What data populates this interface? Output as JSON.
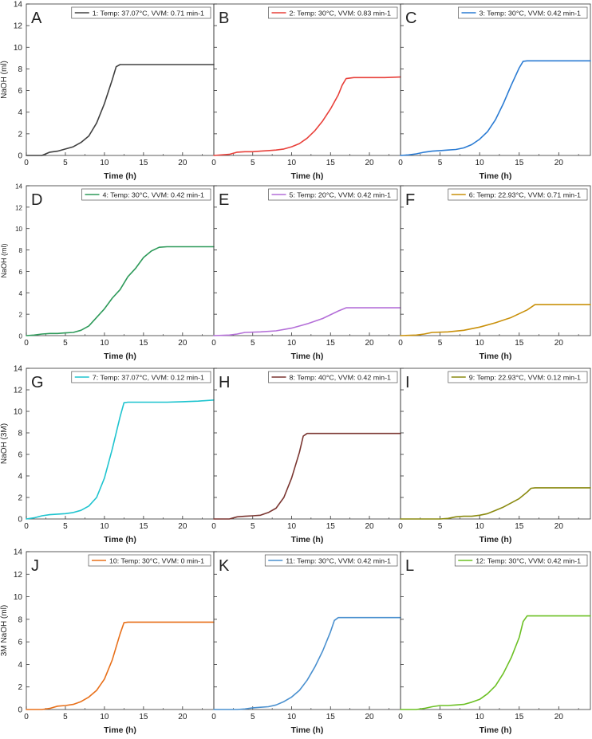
{
  "chart_data": [
    {
      "type": "line",
      "panel": "A",
      "title": "",
      "xlabel": "Time (h)",
      "ylabel": "NaOH (ml)",
      "xlim": [
        0,
        24
      ],
      "ylim": [
        0,
        14
      ],
      "xticks": [
        "0",
        "5",
        "10",
        "15",
        "20"
      ],
      "yticks": [
        "0",
        "2",
        "4",
        "6",
        "8",
        "10",
        "12",
        "14"
      ],
      "legend_position": "top-right",
      "series": [
        {
          "name": "1: Temp: 37.07°C, VVM: 0.71 min-1",
          "color": "#404040",
          "x": [
            0,
            2,
            3,
            4,
            5,
            6,
            7,
            8,
            9,
            10,
            11,
            11.5,
            12,
            14,
            16,
            18,
            20,
            22,
            24
          ],
          "y": [
            0,
            0,
            0.3,
            0.4,
            0.6,
            0.8,
            1.2,
            1.8,
            3,
            4.8,
            7,
            8.2,
            8.4,
            8.4,
            8.4,
            8.4,
            8.4,
            8.4,
            8.4
          ]
        }
      ]
    },
    {
      "type": "line",
      "panel": "B",
      "title": "",
      "xlabel": "Time (h)",
      "ylabel": "",
      "xlim": [
        0,
        24
      ],
      "ylim": [
        0,
        14
      ],
      "xticks": [
        "0",
        "5",
        "10",
        "15",
        "20"
      ],
      "yticks": [],
      "legend_position": "top-right",
      "series": [
        {
          "name": "2: Temp: 30°C, VVM: 0.83 min-1",
          "color": "#e8403a",
          "x": [
            0,
            2,
            3,
            4,
            5,
            6,
            7,
            8,
            9,
            10,
            11,
            12,
            13,
            14,
            15,
            16,
            16.5,
            17,
            18,
            20,
            22,
            24
          ],
          "y": [
            0,
            0.1,
            0.3,
            0.35,
            0.35,
            0.4,
            0.45,
            0.5,
            0.6,
            0.8,
            1.1,
            1.6,
            2.3,
            3.2,
            4.3,
            5.6,
            6.5,
            7.1,
            7.2,
            7.2,
            7.2,
            7.25
          ]
        }
      ]
    },
    {
      "type": "line",
      "panel": "C",
      "title": "",
      "xlabel": "Time (h)",
      "ylabel": "",
      "xlim": [
        0,
        24
      ],
      "ylim": [
        0,
        14
      ],
      "xticks": [
        "0",
        "5",
        "10",
        "15",
        "20"
      ],
      "yticks": [],
      "legend_position": "top-right",
      "series": [
        {
          "name": "3: Temp: 30°C, VVM: 0.42 min-1",
          "color": "#2a7bd3",
          "x": [
            0,
            1,
            2,
            3,
            4,
            5,
            6,
            7,
            8,
            9,
            10,
            11,
            12,
            13,
            14,
            15,
            15.5,
            16,
            18,
            20,
            22,
            24
          ],
          "y": [
            0,
            0.05,
            0.15,
            0.3,
            0.4,
            0.45,
            0.5,
            0.55,
            0.7,
            1,
            1.5,
            2.2,
            3.3,
            4.8,
            6.5,
            8.1,
            8.7,
            8.75,
            8.75,
            8.75,
            8.75,
            8.75
          ]
        }
      ]
    },
    {
      "type": "line",
      "panel": "D",
      "title": "",
      "xlabel": "Time (h)",
      "ylabel": "NaOH (ml)",
      "xlim": [
        0,
        24
      ],
      "ylim": [
        0,
        14
      ],
      "xticks": [
        "0",
        "5",
        "10",
        "15",
        "20"
      ],
      "yticks": [
        "0",
        "2",
        "4",
        "6",
        "8",
        "10",
        "12",
        "14"
      ],
      "legend_position": "top-right",
      "series": [
        {
          "name": "4: Temp: 30°C, VVM: 0.42 min-1",
          "color": "#2e9a5a",
          "x": [
            0,
            1,
            2,
            3,
            4,
            5,
            6,
            7,
            8,
            9,
            10,
            11,
            12,
            13,
            14,
            15,
            16,
            17,
            18,
            20,
            22,
            24
          ],
          "y": [
            0,
            0.05,
            0.15,
            0.2,
            0.2,
            0.25,
            0.3,
            0.5,
            0.9,
            1.7,
            2.5,
            3.5,
            4.3,
            5.5,
            6.3,
            7.3,
            7.9,
            8.25,
            8.3,
            8.3,
            8.3,
            8.3
          ]
        }
      ]
    },
    {
      "type": "line",
      "panel": "E",
      "title": "",
      "xlabel": "Time (h)",
      "ylabel": "",
      "xlim": [
        0,
        24
      ],
      "ylim": [
        0,
        14
      ],
      "xticks": [
        "0",
        "5",
        "10",
        "15",
        "20"
      ],
      "yticks": [],
      "legend_position": "top-right",
      "series": [
        {
          "name": "5: Temp: 20°C, VVM: 0.42 min-1",
          "color": "#b46fd8",
          "x": [
            0,
            2,
            3,
            4,
            6,
            8,
            10,
            12,
            14,
            16,
            17,
            18,
            20,
            22,
            24
          ],
          "y": [
            0,
            0.05,
            0.15,
            0.3,
            0.35,
            0.45,
            0.7,
            1.1,
            1.6,
            2.3,
            2.6,
            2.6,
            2.6,
            2.6,
            2.6
          ]
        }
      ]
    },
    {
      "type": "line",
      "panel": "F",
      "title": "",
      "xlabel": "Time (h)",
      "ylabel": "",
      "xlim": [
        0,
        24
      ],
      "ylim": [
        0,
        14
      ],
      "xticks": [
        "0",
        "5",
        "10",
        "15",
        "20"
      ],
      "yticks": [],
      "legend_position": "top-right",
      "series": [
        {
          "name": "6: Temp: 22.93°C, VVM: 0.71 min-1",
          "color": "#c9900a",
          "x": [
            0,
            2,
            3,
            4,
            6,
            8,
            10,
            12,
            14,
            16,
            17,
            18,
            20,
            22,
            24
          ],
          "y": [
            0,
            0.05,
            0.15,
            0.3,
            0.35,
            0.5,
            0.8,
            1.2,
            1.7,
            2.4,
            2.9,
            2.9,
            2.9,
            2.9,
            2.9
          ]
        }
      ]
    },
    {
      "type": "line",
      "panel": "G",
      "title": "",
      "xlabel": "Time (h)",
      "ylabel": "NaOH (3M)",
      "xlim": [
        0,
        24
      ],
      "ylim": [
        0,
        14
      ],
      "xticks": [
        "0",
        "5",
        "10",
        "15",
        "20"
      ],
      "yticks": [
        "0",
        "2",
        "4",
        "6",
        "8",
        "10",
        "12",
        "14"
      ],
      "legend_position": "top-right",
      "series": [
        {
          "name": "7: Temp: 37.07°C, VVM: 0.12 min-1",
          "color": "#1fc4cf",
          "x": [
            0,
            1,
            2,
            3,
            4,
            5,
            6,
            7,
            8,
            9,
            10,
            11,
            12,
            12.5,
            13,
            15,
            18,
            20,
            22,
            24
          ],
          "y": [
            0,
            0.1,
            0.3,
            0.4,
            0.45,
            0.5,
            0.6,
            0.8,
            1.2,
            2,
            3.8,
            6.5,
            9.5,
            10.8,
            10.85,
            10.85,
            10.85,
            10.9,
            10.95,
            11.05
          ]
        }
      ]
    },
    {
      "type": "line",
      "panel": "H",
      "title": "",
      "xlabel": "Time (h)",
      "ylabel": "",
      "xlim": [
        0,
        24
      ],
      "ylim": [
        0,
        14
      ],
      "xticks": [
        "0",
        "5",
        "10",
        "15",
        "20"
      ],
      "yticks": [],
      "legend_position": "top-right",
      "series": [
        {
          "name": "8: Temp: 40°C, VVM: 0.42 min-1",
          "color": "#7a3530",
          "x": [
            0,
            2,
            3,
            4,
            5,
            6,
            7,
            8,
            9,
            10,
            11,
            11.5,
            12,
            14,
            16,
            18,
            20,
            22,
            24
          ],
          "y": [
            0,
            0,
            0.2,
            0.25,
            0.3,
            0.35,
            0.6,
            1,
            2,
            3.8,
            6.2,
            7.7,
            7.95,
            7.95,
            7.95,
            7.95,
            7.95,
            7.95,
            7.95
          ]
        }
      ]
    },
    {
      "type": "line",
      "panel": "I",
      "title": "",
      "xlabel": "Time (h)",
      "ylabel": "",
      "xlim": [
        0,
        24
      ],
      "ylim": [
        0,
        14
      ],
      "xticks": [
        "0",
        "5",
        "10",
        "15",
        "20"
      ],
      "yticks": [],
      "legend_position": "top-right",
      "series": [
        {
          "name": "9: Temp: 22.93°C, VVM: 0.12 min-1",
          "color": "#8a8a10",
          "x": [
            0,
            5,
            6,
            7,
            8,
            9,
            10,
            11,
            12,
            13,
            14,
            15,
            16,
            16.5,
            17,
            18,
            20,
            22,
            24
          ],
          "y": [
            0,
            0,
            0.05,
            0.2,
            0.25,
            0.25,
            0.35,
            0.5,
            0.8,
            1.1,
            1.5,
            1.9,
            2.5,
            2.85,
            2.9,
            2.9,
            2.9,
            2.9,
            2.9
          ]
        }
      ]
    },
    {
      "type": "line",
      "panel": "J",
      "title": "",
      "xlabel": "Time (h)",
      "ylabel": "3M NaOH (ml)",
      "xlim": [
        0,
        24
      ],
      "ylim": [
        0,
        14
      ],
      "xticks": [
        "0",
        "5",
        "10",
        "15",
        "20"
      ],
      "yticks": [
        "0",
        "2",
        "4",
        "6",
        "8",
        "10",
        "12",
        "14"
      ],
      "legend_position": "top-right",
      "series": [
        {
          "name": "10: Temp: 30°C, VVM: 0 min-1",
          "color": "#e8701a",
          "x": [
            0,
            2,
            3,
            4,
            5,
            6,
            7,
            8,
            9,
            10,
            11,
            12,
            12.5,
            13,
            15,
            18,
            20,
            22,
            24
          ],
          "y": [
            0,
            0,
            0.1,
            0.3,
            0.35,
            0.45,
            0.7,
            1.1,
            1.7,
            2.7,
            4.4,
            6.7,
            7.7,
            7.75,
            7.75,
            7.75,
            7.75,
            7.75,
            7.75
          ]
        }
      ]
    },
    {
      "type": "line",
      "panel": "K",
      "title": "",
      "xlabel": "Time (h)",
      "ylabel": "",
      "xlim": [
        0,
        24
      ],
      "ylim": [
        0,
        14
      ],
      "xticks": [
        "0",
        "5",
        "10",
        "15",
        "20"
      ],
      "yticks": [],
      "legend_position": "top-right",
      "series": [
        {
          "name": "11: Temp: 30°C, VVM: 0.42 min-1",
          "color": "#4a90cf",
          "x": [
            0,
            3,
            4,
            5,
            6,
            7,
            8,
            9,
            10,
            11,
            12,
            13,
            14,
            15,
            15.5,
            16,
            18,
            20,
            22,
            24
          ],
          "y": [
            0,
            0,
            0.05,
            0.15,
            0.2,
            0.25,
            0.4,
            0.7,
            1.1,
            1.7,
            2.6,
            3.8,
            5.2,
            6.9,
            7.9,
            8.15,
            8.15,
            8.15,
            8.15,
            8.15
          ]
        }
      ]
    },
    {
      "type": "line",
      "panel": "L",
      "title": "",
      "xlabel": "Time (h)",
      "ylabel": "",
      "xlim": [
        0,
        24
      ],
      "ylim": [
        0,
        14
      ],
      "xticks": [
        "0",
        "5",
        "10",
        "15",
        "20"
      ],
      "yticks": [],
      "legend_position": "top-right",
      "series": [
        {
          "name": "12: Temp: 30°C, VVM: 0.42 min-1",
          "color": "#6cc024",
          "x": [
            0,
            2,
            3,
            4,
            5,
            6,
            7,
            8,
            9,
            10,
            11,
            12,
            13,
            14,
            15,
            15.5,
            16,
            18,
            20,
            22,
            24
          ],
          "y": [
            0,
            0,
            0.1,
            0.25,
            0.35,
            0.35,
            0.4,
            0.45,
            0.65,
            0.9,
            1.4,
            2.1,
            3.2,
            4.6,
            6.4,
            7.8,
            8.3,
            8.3,
            8.3,
            8.3,
            8.3
          ]
        }
      ]
    }
  ]
}
